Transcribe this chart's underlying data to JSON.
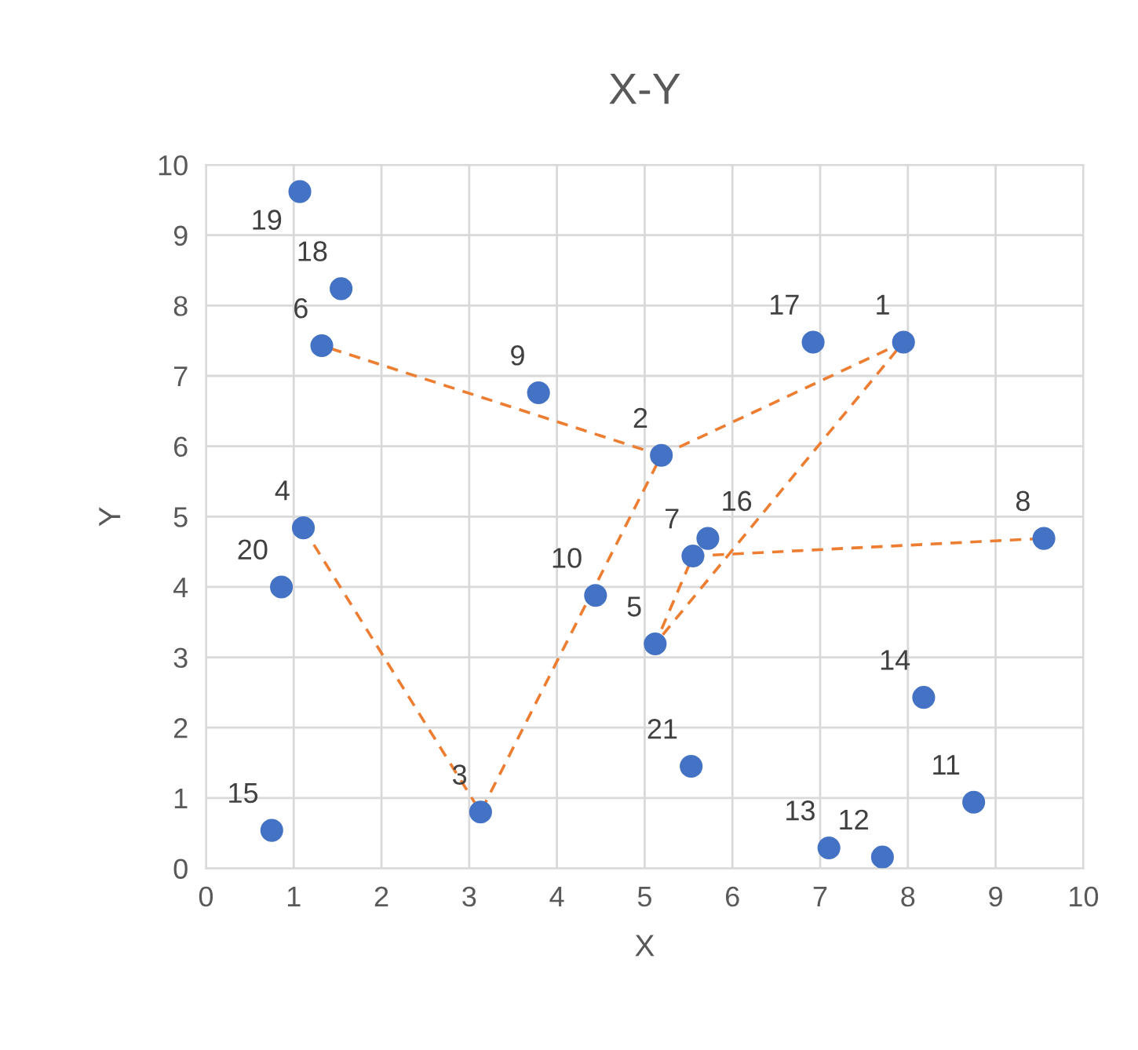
{
  "chart_data": {
    "type": "scatter",
    "title": "X-Y",
    "xlabel": "X",
    "ylabel": "Y",
    "xlim": [
      0,
      10
    ],
    "ylim": [
      0,
      10
    ],
    "xticks": [
      0,
      1,
      2,
      3,
      4,
      5,
      6,
      7,
      8,
      9,
      10
    ],
    "yticks": [
      0,
      1,
      2,
      3,
      4,
      5,
      6,
      7,
      8,
      9,
      10
    ],
    "grid": true,
    "legend": false,
    "series": [
      {
        "type": "scatter",
        "color": "#4472c4",
        "marker": "circle",
        "x": [
          7.95,
          5.19,
          3.13,
          1.11,
          5.12,
          1.32,
          5.55,
          9.55,
          3.79,
          4.44,
          8.75,
          7.71,
          7.1,
          8.18,
          0.75,
          5.72,
          6.92,
          1.54,
          1.07,
          0.86,
          5.53
        ],
        "values": [
          7.48,
          5.87,
          0.8,
          4.84,
          3.19,
          7.43,
          4.44,
          4.69,
          6.76,
          3.88,
          0.94,
          0.16,
          0.29,
          2.43,
          0.54,
          4.69,
          7.48,
          8.24,
          9.62,
          4.0,
          1.45
        ]
      },
      {
        "type": "line",
        "color": "#ed7d31",
        "line_style": "dashed",
        "marker": "none",
        "x": [
          1.11,
          3.13,
          5.19,
          1.32
        ],
        "values": [
          4.84,
          0.8,
          5.87,
          7.43
        ]
      },
      {
        "type": "line",
        "color": "#ed7d31",
        "line_style": "dashed",
        "marker": "none",
        "x": [
          5.19,
          7.95,
          5.12,
          5.55,
          9.55
        ],
        "values": [
          5.87,
          7.48,
          3.19,
          4.44,
          4.69
        ]
      }
    ],
    "annotations": [
      {
        "text": "1",
        "x": 7.95,
        "y": 7.48
      },
      {
        "text": "2",
        "x": 5.19,
        "y": 5.87
      },
      {
        "text": "3",
        "x": 3.13,
        "y": 0.8
      },
      {
        "text": "4",
        "x": 1.11,
        "y": 4.84
      },
      {
        "text": "5",
        "x": 5.12,
        "y": 3.19
      },
      {
        "text": "6",
        "x": 1.32,
        "y": 7.43
      },
      {
        "text": "7",
        "x": 5.55,
        "y": 4.44
      },
      {
        "text": "8",
        "x": 9.55,
        "y": 4.69
      },
      {
        "text": "9",
        "x": 3.79,
        "y": 6.76
      },
      {
        "text": "10",
        "x": 4.44,
        "y": 3.88
      },
      {
        "text": "11",
        "x": 8.75,
        "y": 0.94
      },
      {
        "text": "12",
        "x": 7.71,
        "y": 0.16
      },
      {
        "text": "13",
        "x": 7.1,
        "y": 0.29
      },
      {
        "text": "14",
        "x": 8.18,
        "y": 2.43
      },
      {
        "text": "15",
        "x": 0.75,
        "y": 0.54
      },
      {
        "text": "16",
        "x": 5.72,
        "y": 4.69
      },
      {
        "text": "17",
        "x": 6.92,
        "y": 7.48
      },
      {
        "text": "18",
        "x": 1.54,
        "y": 8.24
      },
      {
        "text": "19",
        "x": 1.07,
        "y": 9.62
      },
      {
        "text": "20",
        "x": 0.86,
        "y": 4.0
      },
      {
        "text": "21",
        "x": 5.53,
        "y": 1.45
      }
    ]
  }
}
